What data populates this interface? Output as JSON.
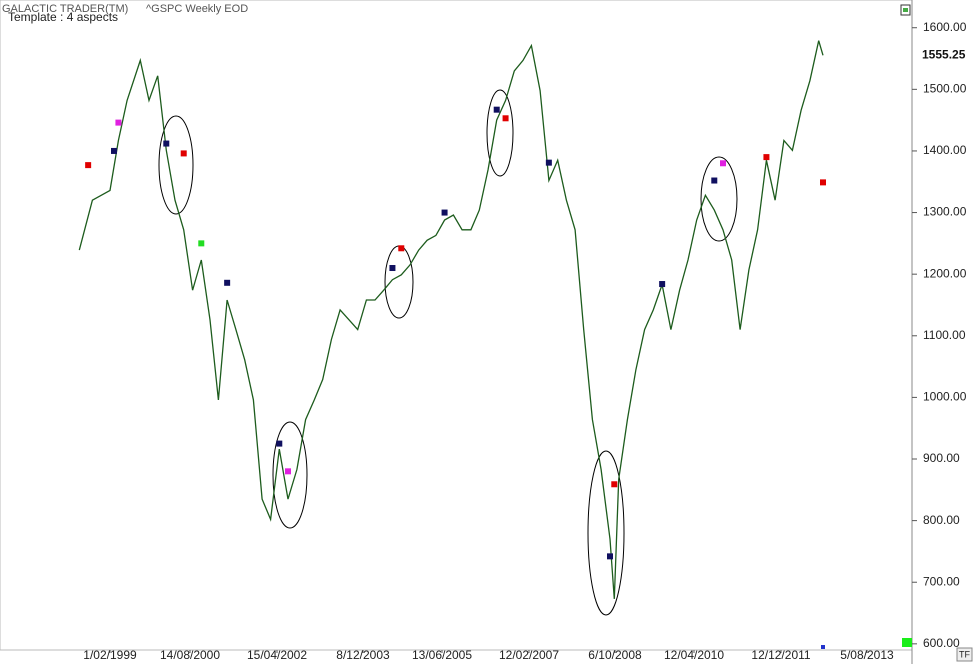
{
  "chart_data": {
    "type": "line",
    "app_title": "GALACTIC TRADER(TM)",
    "title": "^GSPC Weekly EOD",
    "subtitle": "Template : 4 aspects",
    "timeframe_button": "TF",
    "last_price": 1555.25,
    "xlim": [
      "23/12/1996",
      "16/06/2014"
    ],
    "xticks": [
      "1/02/1999",
      "14/08/2000",
      "15/04/2002",
      "8/12/2003",
      "13/06/2005",
      "12/02/2007",
      "6/10/2008",
      "12/04/2010",
      "12/12/2011",
      "5/08/2013"
    ],
    "ylim": [
      590,
      1645
    ],
    "yticks": [
      {
        "value": 600,
        "label": "600.00"
      },
      {
        "value": 700,
        "label": "700.00"
      },
      {
        "value": 800,
        "label": "800.00"
      },
      {
        "value": 900,
        "label": "900.00"
      },
      {
        "value": 1000,
        "label": "1000.00"
      },
      {
        "value": 1100,
        "label": "1100.00"
      },
      {
        "value": 1200,
        "label": "1200.00"
      },
      {
        "value": 1300,
        "label": "1300.00"
      },
      {
        "value": 1400,
        "label": "1400.00"
      },
      {
        "value": 1500,
        "label": "1500.00"
      },
      {
        "value": 1600,
        "label": "1600.00"
      }
    ],
    "x": [
      "1/07/1998",
      "1/10/1998",
      "1/02/1999",
      "1/04/1999",
      "1/06/1999",
      "1/09/1999",
      "1/11/1999",
      "1/01/2000",
      "1/03/2000",
      "1/05/2000",
      "1/07/2000",
      "1/09/2000",
      "1/11/2000",
      "1/01/2001",
      "1/03/2001",
      "1/05/2001",
      "1/07/2001",
      "1/09/2001",
      "1/11/2001",
      "1/01/2002",
      "1/03/2002",
      "1/05/2002",
      "1/07/2002",
      "1/09/2002",
      "1/11/2002",
      "1/01/2003",
      "1/03/2003",
      "1/05/2003",
      "1/07/2003",
      "1/09/2003",
      "1/11/2003",
      "1/01/2004",
      "1/03/2004",
      "1/05/2004",
      "1/07/2004",
      "1/09/2004",
      "1/11/2004",
      "1/01/2005",
      "1/03/2005",
      "1/05/2005",
      "1/07/2005",
      "1/09/2005",
      "1/11/2005",
      "1/01/2006",
      "1/03/2006",
      "1/05/2006",
      "1/07/2006",
      "1/09/2006",
      "1/11/2006",
      "1/01/2007",
      "1/03/2007",
      "1/05/2007",
      "1/07/2007",
      "1/09/2007",
      "1/11/2007",
      "1/01/2008",
      "1/03/2008",
      "1/05/2008",
      "1/07/2008",
      "1/09/2008",
      "1/10/2008",
      "1/11/2008",
      "1/01/2009",
      "1/03/2009",
      "1/05/2009",
      "1/07/2009",
      "1/09/2009",
      "1/11/2009",
      "1/01/2010",
      "1/03/2010",
      "1/05/2010",
      "1/07/2010",
      "1/09/2010",
      "1/11/2010",
      "1/01/2011",
      "1/03/2011",
      "1/05/2011",
      "1/07/2011",
      "1/09/2011",
      "1/11/2011",
      "1/01/2012",
      "1/03/2012",
      "1/05/2012",
      "1/07/2012",
      "1/09/2012",
      "1/10/2012"
    ],
    "series": [
      {
        "color": "#1d5c1d",
        "values": [
          1239,
          1320,
          1336,
          1417,
          1482,
          1547,
          1482,
          1522,
          1401,
          1320,
          1272,
          1174,
          1223,
          1126,
          996,
          1158,
          1110,
          1061,
          996,
          835,
          802,
          916,
          835,
          883,
          964,
          996,
          1029,
          1094,
          1142,
          1126,
          1110,
          1158,
          1158,
          1174,
          1191,
          1199,
          1215,
          1239,
          1255,
          1263,
          1288,
          1296,
          1272,
          1272,
          1304,
          1369,
          1450,
          1482,
          1530,
          1547,
          1571,
          1498,
          1352,
          1385,
          1320,
          1272,
          1110,
          964,
          883,
          770,
          673,
          867,
          964,
          1045,
          1110,
          1142,
          1183,
          1110,
          1174,
          1223,
          1288,
          1328,
          1304,
          1272,
          1223,
          1110,
          1207,
          1272,
          1385,
          1320,
          1417,
          1401,
          1466,
          1514,
          1579,
          1555.25
        ]
      }
    ],
    "marks": [
      {
        "x": "1/09/1998",
        "y": 1377,
        "color": "#e00000"
      },
      {
        "x": "1/03/1999",
        "y": 1400,
        "color": "#101060"
      },
      {
        "x": "1/04/1999",
        "y": 1446,
        "color": "#e020e0"
      },
      {
        "x": "1/03/2000",
        "y": 1412,
        "color": "#101060"
      },
      {
        "x": "1/07/2000",
        "y": 1396,
        "color": "#e00000"
      },
      {
        "x": "1/11/2000",
        "y": 1250,
        "color": "#22dd22"
      },
      {
        "x": "1/05/2001",
        "y": 1186,
        "color": "#101060"
      },
      {
        "x": "1/05/2002",
        "y": 925,
        "color": "#101060"
      },
      {
        "x": "1/07/2002",
        "y": 880,
        "color": "#e020e0"
      },
      {
        "x": "1/07/2004",
        "y": 1210,
        "color": "#101060"
      },
      {
        "x": "1/09/2004",
        "y": 1242,
        "color": "#e00000"
      },
      {
        "x": "1/07/2005",
        "y": 1300,
        "color": "#101060"
      },
      {
        "x": "1/07/2006",
        "y": 1467,
        "color": "#101060"
      },
      {
        "x": "1/09/2006",
        "y": 1453,
        "color": "#e00000"
      },
      {
        "x": "1/07/2007",
        "y": 1381,
        "color": "#101060"
      },
      {
        "x": "1/09/2008",
        "y": 742,
        "color": "#101060"
      },
      {
        "x": "1/10/2008",
        "y": 859,
        "color": "#e00000"
      },
      {
        "x": "1/09/2009",
        "y": 1184,
        "color": "#101060"
      },
      {
        "x": "1/09/2010",
        "y": 1352,
        "color": "#101060"
      },
      {
        "x": "1/11/2010",
        "y": 1380,
        "color": "#e020e0"
      },
      {
        "x": "1/09/2011",
        "y": 1390,
        "color": "#e00000"
      },
      {
        "x": "1/10/2012",
        "y": 1349,
        "color": "#e00000"
      }
    ]
  }
}
